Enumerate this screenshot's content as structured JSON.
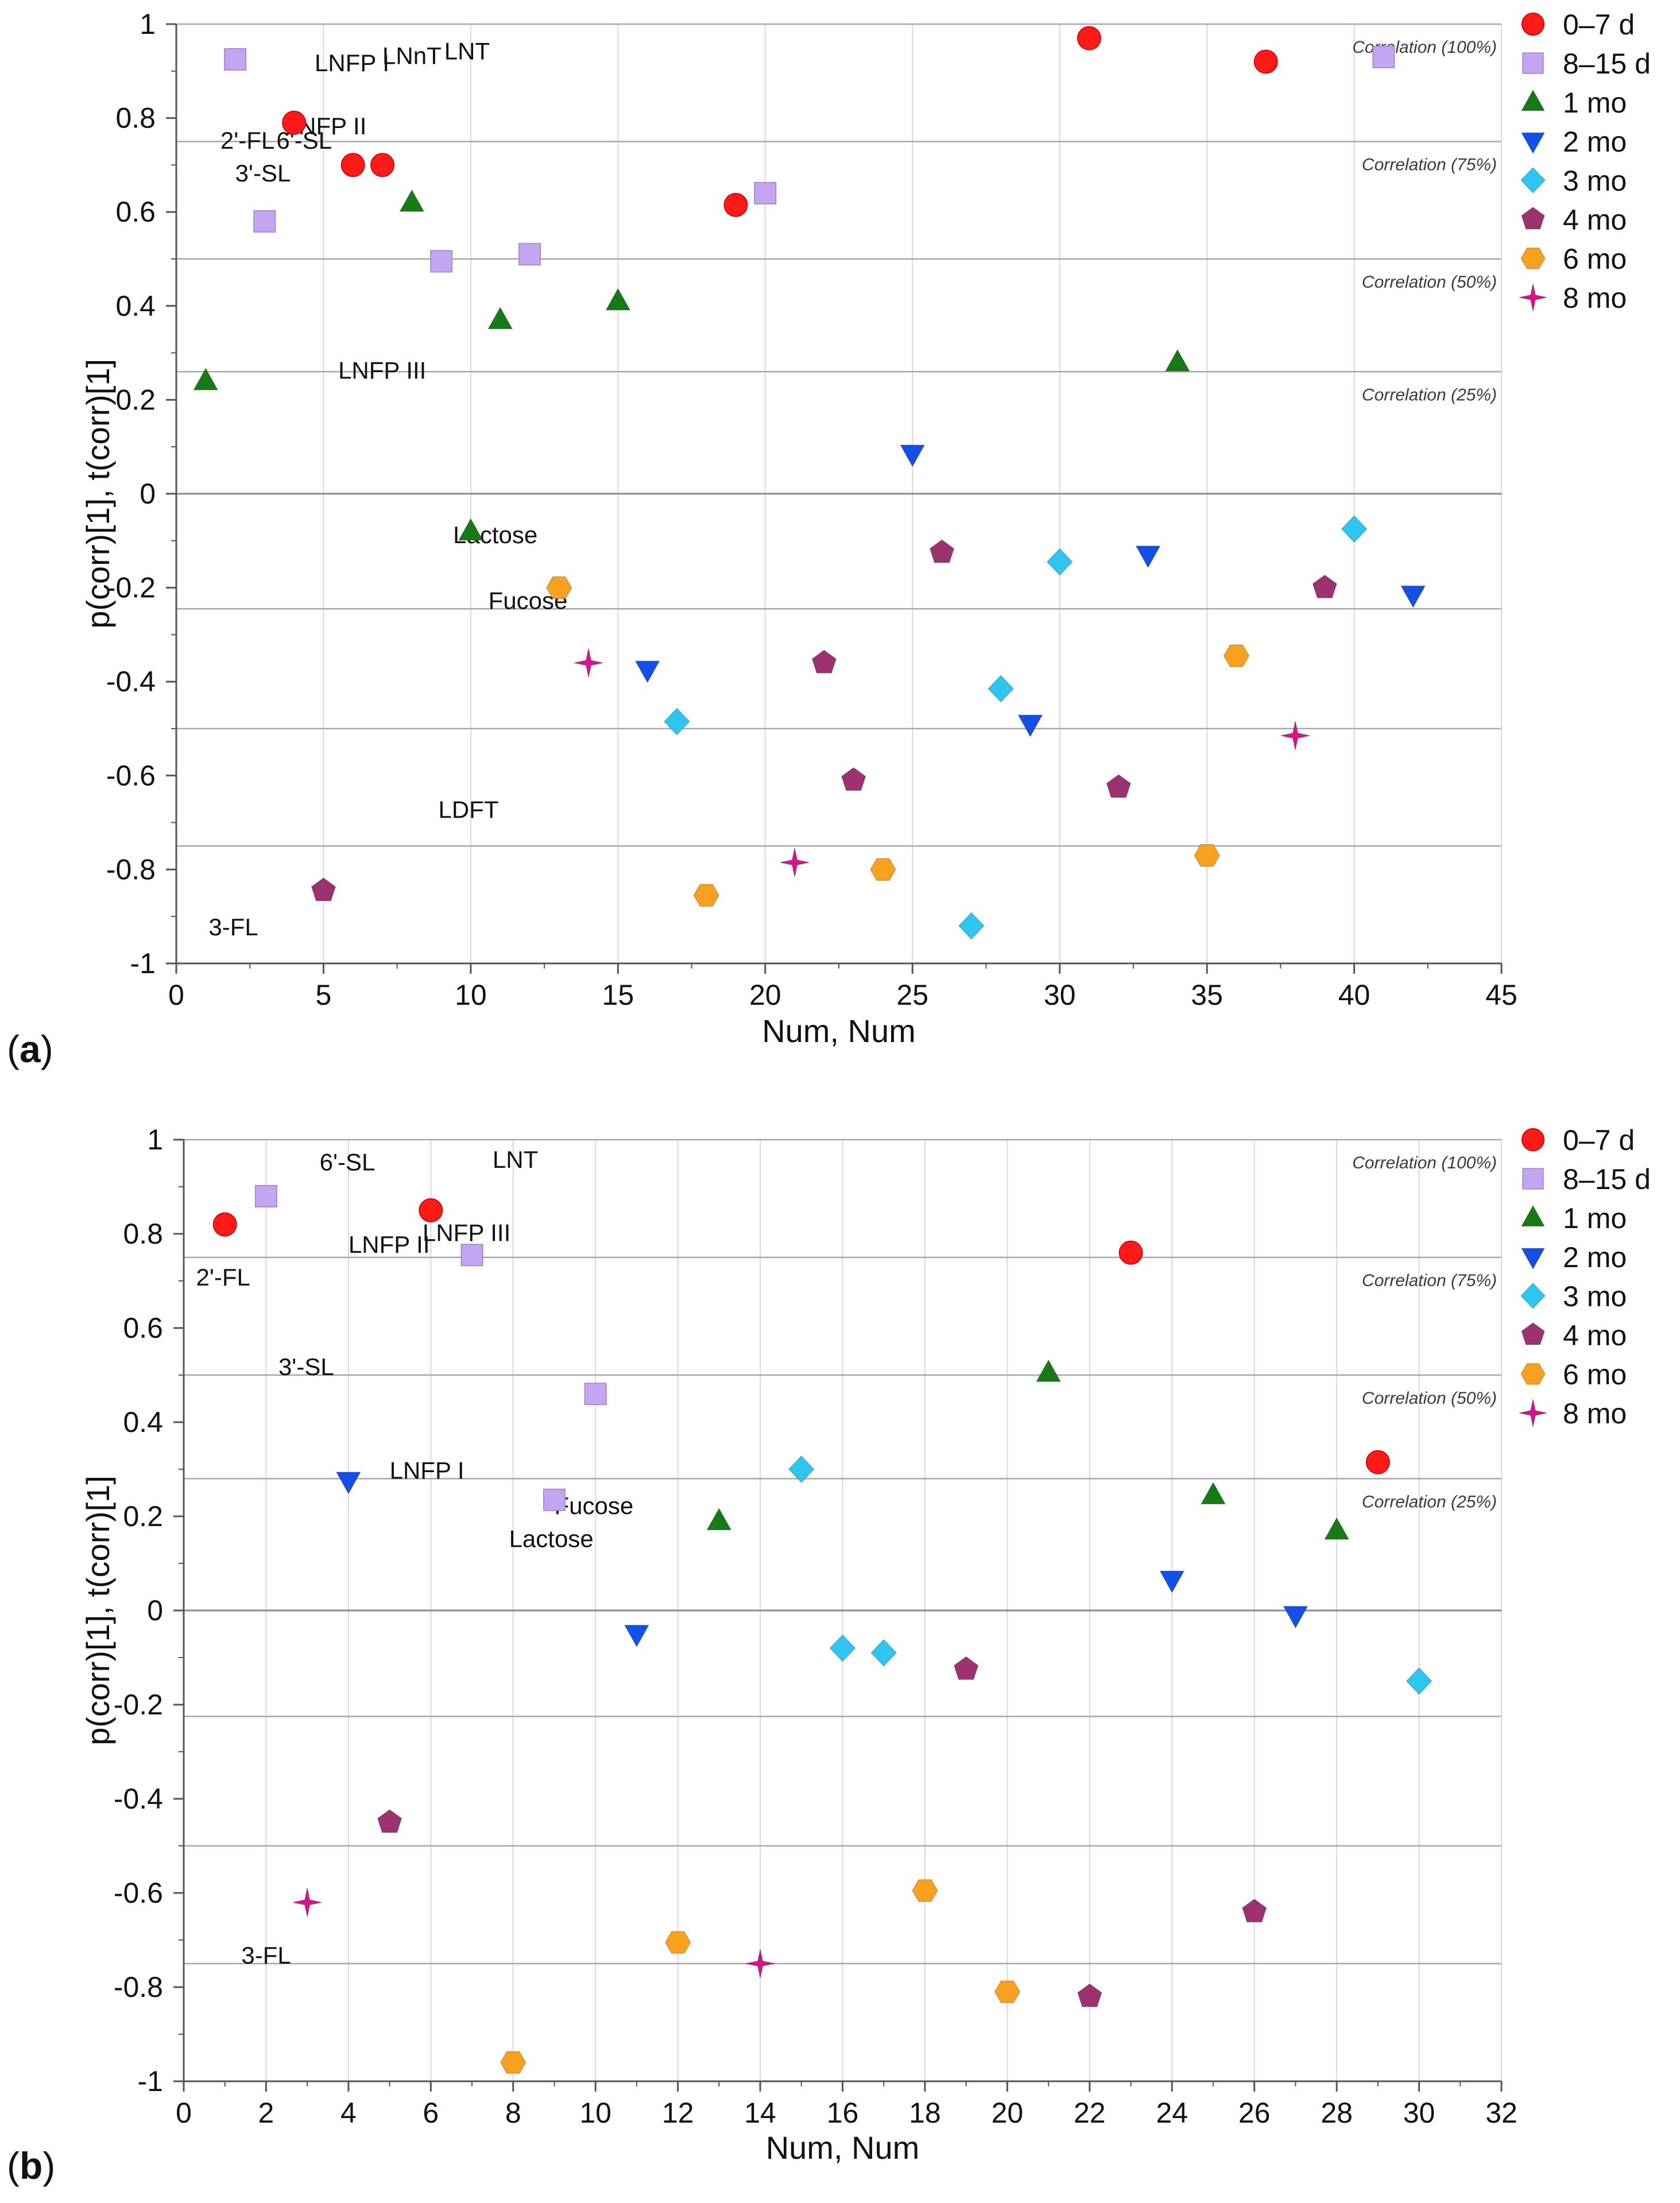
{
  "panels": [
    {
      "panel_label": "a",
      "legend": {
        "placement": "top-right",
        "entries": [
          "0–7 d",
          "8–15 d",
          "1 mo",
          "2 mo",
          "3 mo",
          "4 mo",
          "6 mo",
          "8 mo"
        ]
      },
      "chart_data": {
        "type": "scatter",
        "title": "",
        "xlabel": "Num, Num",
        "ylabel": "p(corr)[1], t(corr)[1]",
        "xlim": [
          0,
          45
        ],
        "ylim": [
          -1,
          1
        ],
        "xticks": [
          0,
          5,
          10,
          15,
          20,
          25,
          30,
          35,
          40,
          45
        ],
        "xtick_labels": [
          "0",
          "5",
          "10",
          "15",
          "20",
          "25",
          "30",
          "35",
          "40",
          "45"
        ],
        "yticks": [
          1,
          0.8,
          0.6,
          0.4,
          0.2,
          0,
          -0.2,
          -0.4,
          -0.6,
          -0.8,
          -1
        ],
        "ytick_labels": [
          "1",
          "0.8",
          "0.6",
          "0.4",
          "0.2",
          "0",
          "-0.2",
          "-0.4",
          "-0.6",
          "-0.8",
          "-1"
        ],
        "grid": "vertical",
        "series": [
          {
            "name": "0–7 d",
            "marker": "circle",
            "color": "#ff1a1a",
            "x": [
              4,
              6,
              7,
              19,
              31,
              37
            ],
            "y": [
              0.79,
              0.7,
              0.7,
              0.615,
              0.97,
              0.92
            ]
          },
          {
            "name": "8–15 d",
            "marker": "square",
            "color": "#c4a5f2",
            "x": [
              2,
              3,
              9,
              12,
              20,
              41
            ],
            "y": [
              0.925,
              0.58,
              0.495,
              0.51,
              0.64,
              0.93
            ]
          },
          {
            "name": "1 mo",
            "marker": "triangle-up",
            "color": "#177a17",
            "x": [
              1,
              8,
              10,
              11,
              15,
              34
            ],
            "y": [
              0.24,
              0.62,
              -0.08,
              0.37,
              0.41,
              0.28
            ]
          },
          {
            "name": "2 mo",
            "marker": "triangle-down",
            "color": "#1450e6",
            "x": [
              16,
              25,
              29,
              33,
              42
            ],
            "y": [
              -0.375,
              0.085,
              -0.49,
              -0.13,
              -0.215
            ]
          },
          {
            "name": "3 mo",
            "marker": "diamond",
            "color": "#2ec6f0",
            "x": [
              17,
              27,
              28,
              30,
              40
            ],
            "y": [
              -0.485,
              -0.92,
              -0.415,
              -0.145,
              -0.075
            ]
          },
          {
            "name": "4 mo",
            "marker": "pentagon",
            "color": "#9c3270",
            "x": [
              5,
              22,
              23,
              26,
              32,
              39
            ],
            "y": [
              -0.845,
              -0.36,
              -0.61,
              -0.125,
              -0.625,
              -0.2
            ]
          },
          {
            "name": "6 mo",
            "marker": "hexagon",
            "color": "#f8a020",
            "x": [
              13,
              18,
              24,
              35,
              36
            ],
            "y": [
              -0.2,
              -0.855,
              -0.8,
              -0.77,
              -0.345
            ]
          },
          {
            "name": "8 mo",
            "marker": "star",
            "color": "#d1168c",
            "x": [
              14,
              21,
              38
            ],
            "y": [
              -0.36,
              -0.785,
              -0.515
            ]
          }
        ],
        "reference_lines": [
          {
            "y": 1.0,
            "label": "Correlation (100%)"
          },
          {
            "y": 0.75,
            "label": "Correlation (75%)"
          },
          {
            "y": 0.5,
            "label": "Correlation (50%)"
          },
          {
            "y": 0.26,
            "label": "Correlation (25%)"
          },
          {
            "y": 0,
            "label": ""
          },
          {
            "y": -0.245,
            "label": ""
          },
          {
            "y": -0.5,
            "label": ""
          },
          {
            "y": -0.75,
            "label": ""
          }
        ],
        "annotations": [
          {
            "text": "LNT",
            "x": 9.1,
            "y": 0.925
          },
          {
            "text": "LNFP I",
            "x": 4.7,
            "y": 0.9
          },
          {
            "text": "LNnT",
            "x": 7.0,
            "y": 0.915
          },
          {
            "text": "LNFP II",
            "x": 3.7,
            "y": 0.765
          },
          {
            "text": "2'-FL",
            "x": 1.5,
            "y": 0.735
          },
          {
            "text": "6'-SL",
            "x": 3.4,
            "y": 0.735
          },
          {
            "text": "3'-SL",
            "x": 2.0,
            "y": 0.665
          },
          {
            "text": "LNFP III",
            "x": 5.5,
            "y": 0.245
          },
          {
            "text": "Lactose",
            "x": 9.4,
            "y": -0.105
          },
          {
            "text": "Fucose",
            "x": 10.6,
            "y": -0.245
          },
          {
            "text": "LDFT",
            "x": 8.9,
            "y": -0.69
          },
          {
            "text": "3-FL",
            "x": 1.1,
            "y": -0.94
          }
        ]
      }
    },
    {
      "panel_label": "b",
      "legend": {
        "placement": "top-right",
        "entries": [
          "0–7 d",
          "8–15 d",
          "1 mo",
          "2 mo",
          "3 mo",
          "4 mo",
          "6 mo",
          "8 mo"
        ]
      },
      "chart_data": {
        "type": "scatter",
        "title": "",
        "xlabel": "Num, Num",
        "ylabel": "p(corr)[1], t(corr)[1]",
        "xlim": [
          0,
          32
        ],
        "ylim": [
          -1,
          1
        ],
        "xticks": [
          0,
          2,
          4,
          6,
          8,
          10,
          12,
          14,
          16,
          18,
          20,
          22,
          24,
          26,
          28,
          30,
          32
        ],
        "xtick_labels": [
          "0",
          "2",
          "4",
          "6",
          "8",
          "10",
          "12",
          "14",
          "16",
          "18",
          "20",
          "22",
          "24",
          "26",
          "28",
          "30",
          "32"
        ],
        "yticks": [
          1,
          0.8,
          0.6,
          0.4,
          0.2,
          0,
          -0.2,
          -0.4,
          -0.6,
          -0.8,
          -1
        ],
        "ytick_labels": [
          "1",
          "0.8",
          "0.6",
          "0.4",
          "0.2",
          "0",
          "-0.2",
          "-0.4",
          "-0.6",
          "-0.8",
          "-1"
        ],
        "grid": "vertical",
        "series": [
          {
            "name": "0–7 d",
            "marker": "circle",
            "color": "#ff1a1a",
            "x": [
              1,
              6,
              23,
              29
            ],
            "y": [
              0.82,
              0.85,
              0.76,
              0.315
            ]
          },
          {
            "name": "8–15 d",
            "marker": "square",
            "color": "#c4a5f2",
            "x": [
              2,
              7,
              9,
              10
            ],
            "y": [
              0.88,
              0.755,
              0.235,
              0.46
            ]
          },
          {
            "name": "1 mo",
            "marker": "triangle-up",
            "color": "#177a17",
            "x": [
              13,
              21,
              25,
              28
            ],
            "y": [
              0.19,
              0.505,
              0.245,
              0.17
            ]
          },
          {
            "name": "2 mo",
            "marker": "triangle-down",
            "color": "#1450e6",
            "x": [
              4,
              11,
              24,
              27
            ],
            "y": [
              0.275,
              -0.05,
              0.065,
              -0.01
            ]
          },
          {
            "name": "3 mo",
            "marker": "diamond",
            "color": "#2ec6f0",
            "x": [
              15,
              16,
              17,
              30
            ],
            "y": [
              0.3,
              -0.08,
              -0.09,
              -0.15
            ]
          },
          {
            "name": "4 mo",
            "marker": "pentagon",
            "color": "#9c3270",
            "x": [
              5,
              19,
              22,
              26
            ],
            "y": [
              -0.45,
              -0.125,
              -0.82,
              -0.64
            ]
          },
          {
            "name": "6 mo",
            "marker": "hexagon",
            "color": "#f8a020",
            "x": [
              8,
              12,
              18,
              20
            ],
            "y": [
              -0.96,
              -0.705,
              -0.595,
              -0.81
            ]
          },
          {
            "name": "8 mo",
            "marker": "star",
            "color": "#d1168c",
            "x": [
              3,
              14
            ],
            "y": [
              -0.62,
              -0.75
            ]
          }
        ],
        "reference_lines": [
          {
            "y": 1.0,
            "label": "Correlation (100%)"
          },
          {
            "y": 0.75,
            "label": "Correlation (75%)"
          },
          {
            "y": 0.5,
            "label": "Correlation (50%)"
          },
          {
            "y": 0.28,
            "label": "Correlation (25%)"
          },
          {
            "y": 0,
            "label": ""
          },
          {
            "y": -0.225,
            "label": ""
          },
          {
            "y": -0.5,
            "label": ""
          },
          {
            "y": -0.75,
            "label": ""
          }
        ],
        "annotations": [
          {
            "text": "6'-SL",
            "x": 3.3,
            "y": 0.935
          },
          {
            "text": "LNT",
            "x": 7.5,
            "y": 0.94
          },
          {
            "text": "LNFP II",
            "x": 4.0,
            "y": 0.76
          },
          {
            "text": "LNFP III",
            "x": 5.8,
            "y": 0.785
          },
          {
            "text": "2'-FL",
            "x": 0.3,
            "y": 0.69
          },
          {
            "text": "3'-SL",
            "x": 2.3,
            "y": 0.5
          },
          {
            "text": "LNFP I",
            "x": 5.0,
            "y": 0.28
          },
          {
            "text": "Fucose",
            "x": 9.0,
            "y": 0.205
          },
          {
            "text": "Lactose",
            "x": 7.9,
            "y": 0.135
          },
          {
            "text": "3-FL",
            "x": 1.4,
            "y": -0.75
          }
        ]
      }
    }
  ]
}
